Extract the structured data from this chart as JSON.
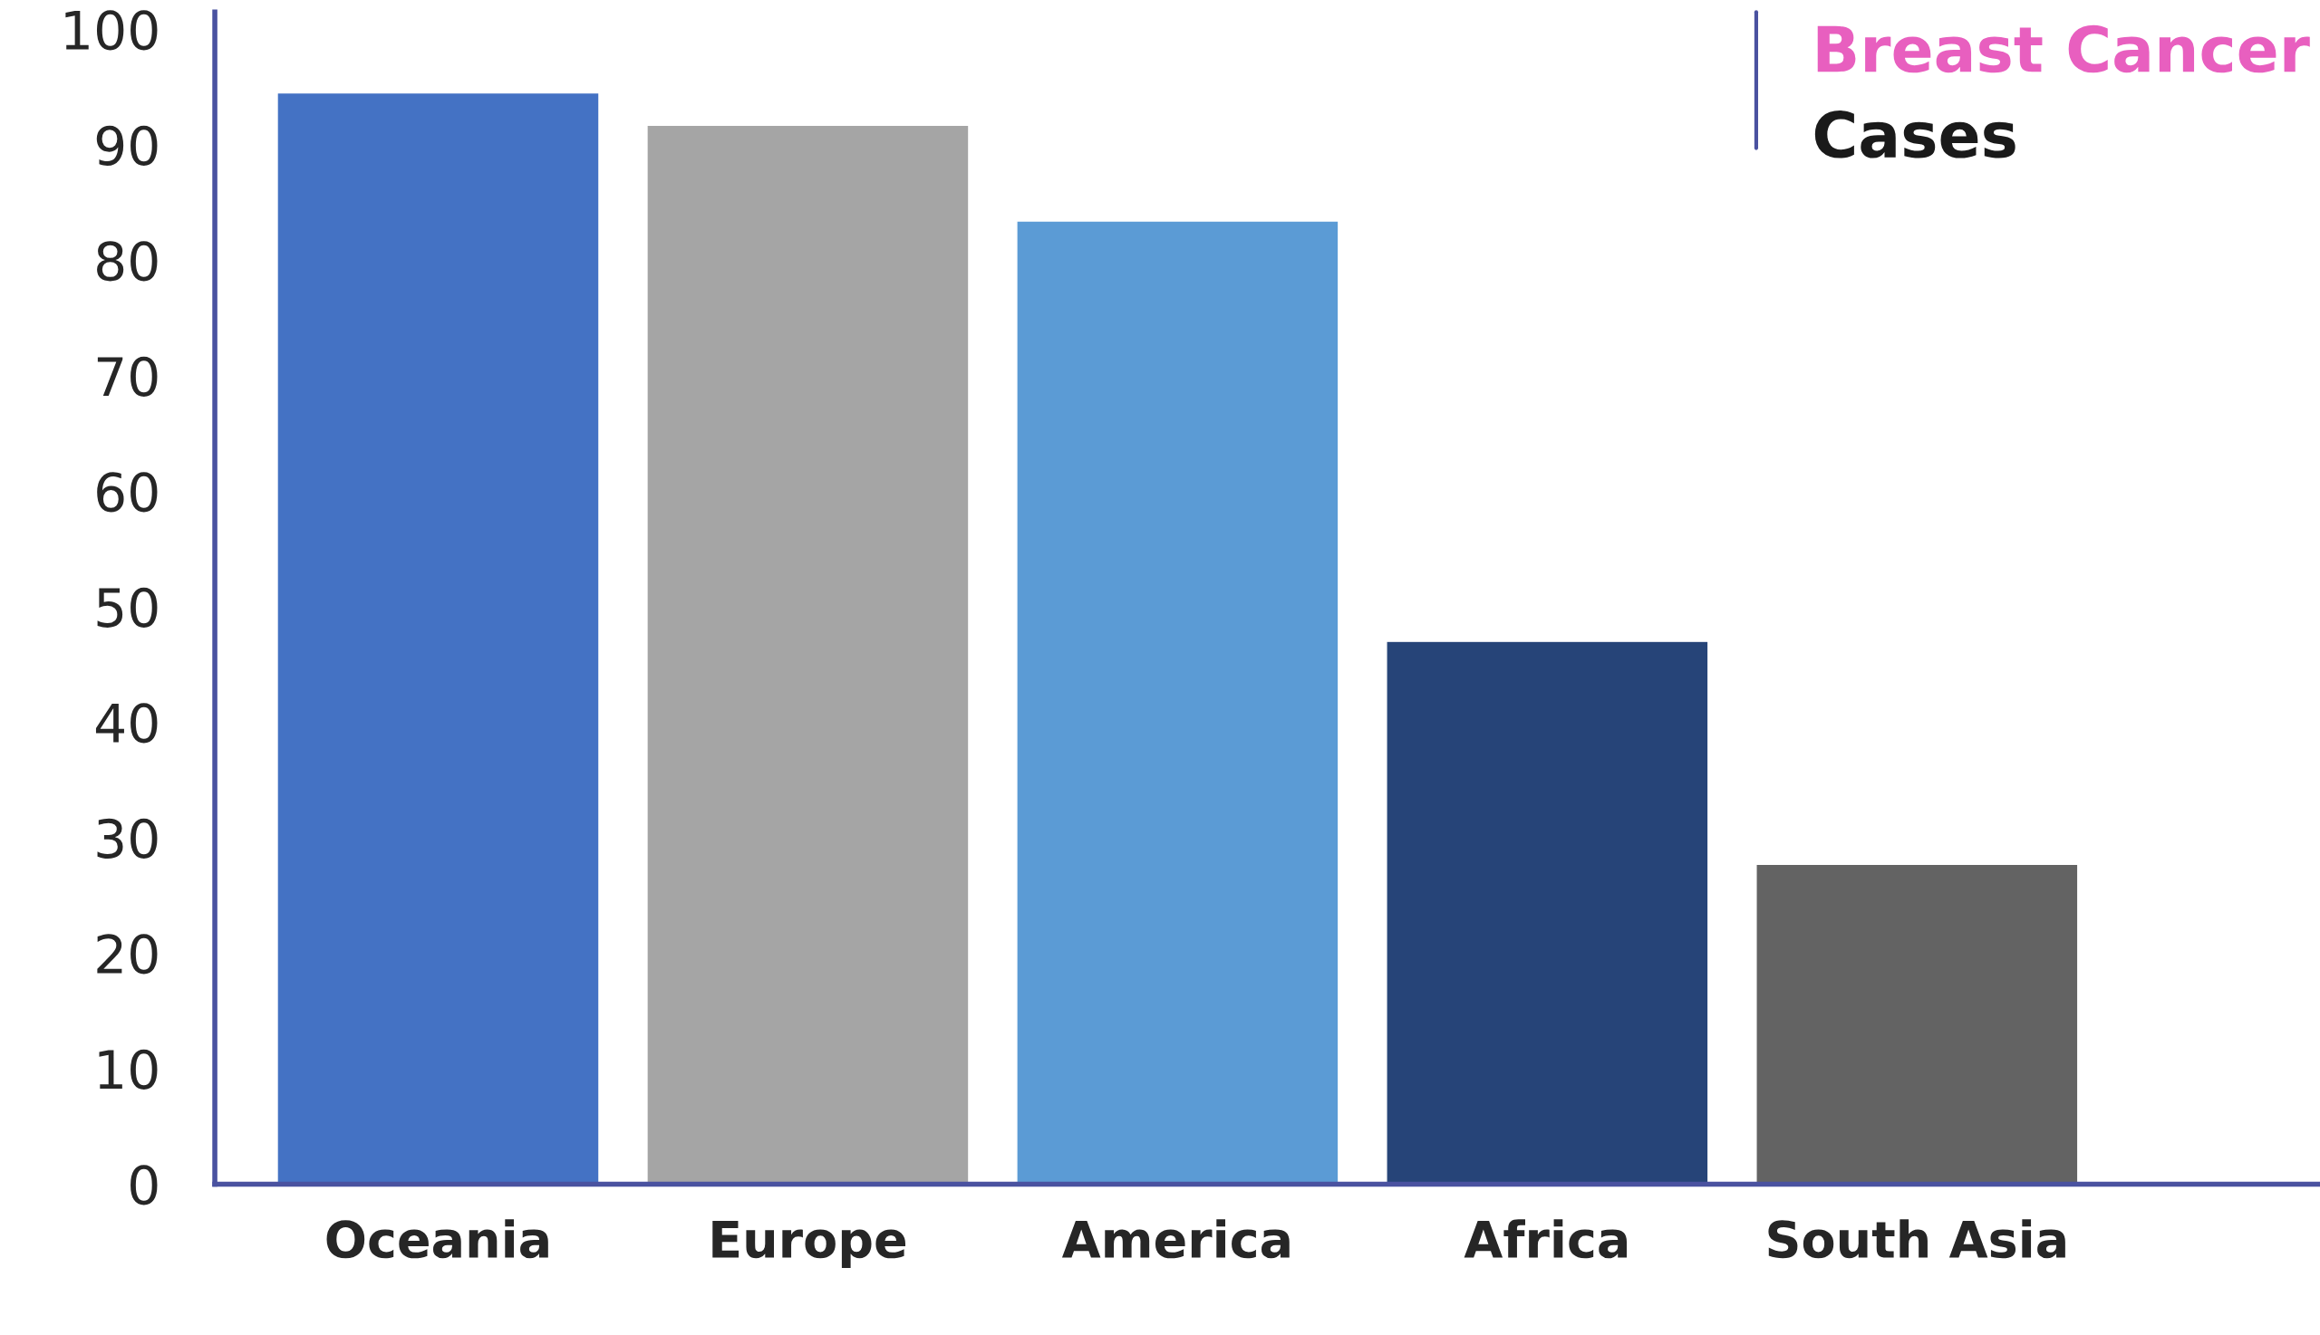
{
  "chart_data": {
    "type": "bar",
    "title": "Breast Cancer",
    "subtitle": "Cases",
    "categories": [
      "Oceania",
      "Europe",
      "America",
      "Africa",
      "South Asia"
    ],
    "values": [
      94.5,
      91.7,
      83.4,
      47.0,
      27.7
    ],
    "colors": [
      "#4472c4",
      "#a5a5a5",
      "#5b9bd5",
      "#264478",
      "#636363"
    ],
    "ylim": [
      0,
      101.5
    ],
    "yticks": [
      0,
      10,
      20,
      30,
      40,
      50,
      60,
      70,
      80,
      90,
      100
    ],
    "grid": false,
    "legend": false
  }
}
